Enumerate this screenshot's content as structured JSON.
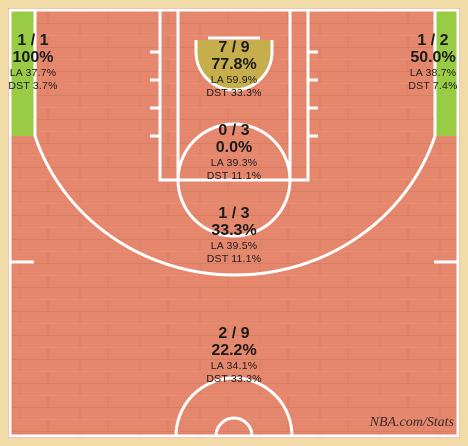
{
  "colors": {
    "frame": "#f1dca8",
    "floor": "#e5876d",
    "floor_dark": "#d77a60",
    "lines": "#ffffff",
    "hot": "#99cc44",
    "warm": "#c5b04b"
  },
  "zones": {
    "left_corner": {
      "made_attempts": "1 / 1",
      "pct": "100%",
      "la": "LA 37.7%",
      "dst": "DST  3.7%"
    },
    "right_corner": {
      "made_attempts": "1 / 2",
      "pct": "50.0%",
      "la": "LA 38.7%",
      "dst": "DST  7.4%"
    },
    "restricted": {
      "made_attempts": "7 / 9",
      "pct": "77.8%",
      "la": "LA 59.9%",
      "dst": "DST  33.3%"
    },
    "paint": {
      "made_attempts": "0 / 3",
      "pct": "0.0%",
      "la": "LA 39.3%",
      "dst": "DST  11.1%"
    },
    "midrange": {
      "made_attempts": "1 / 3",
      "pct": "33.3%",
      "la": "LA 39.5%",
      "dst": "DST  11.1%"
    },
    "above_break": {
      "made_attempts": "2 / 9",
      "pct": "22.2%",
      "la": "LA 34.1%",
      "dst": "DST  33.3%"
    }
  },
  "watermark": "NBA.com/Stats"
}
